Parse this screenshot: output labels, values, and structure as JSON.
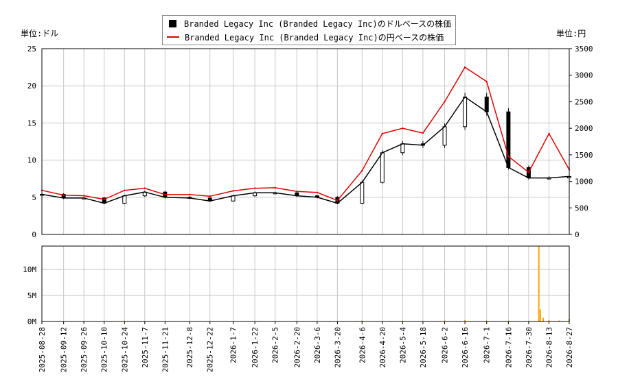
{
  "legend": {
    "usd": "Branded Legacy Inc (Branded Legacy Inc)のドルベースの株価",
    "jpy": "Branded Legacy Inc (Branded Legacy Inc)の円ベースの株価"
  },
  "units": {
    "left": "単位:ドル",
    "right": "単位:円"
  },
  "colors": {
    "usd_candle": "#000000",
    "jpy_line": "#e00000",
    "volume": "#ffa500",
    "grid": "#c8c8c8"
  },
  "chart_data": [
    {
      "type": "line",
      "title": "",
      "x_dates": [
        "2025-08-28",
        "2025-09-12",
        "2025-09-26",
        "2025-10-10",
        "2025-10-24",
        "2025-11-7",
        "2025-11-21",
        "2025-12-8",
        "2025-12-22",
        "2026-1-7",
        "2026-1-22",
        "2026-2-5",
        "2026-2-20",
        "2026-3-6",
        "2026-3-20",
        "2026-4-6",
        "2026-4-20",
        "2026-5-4",
        "2026-5-18",
        "2026-6-2",
        "2026-6-16",
        "2026-7-1",
        "2026-7-16",
        "2026-7-30",
        "2026-8-13",
        "2026-8-27"
      ],
      "y_left": {
        "label": "単位:ドル",
        "ylim": [
          0,
          25
        ],
        "ticks": [
          0,
          5,
          10,
          15,
          20,
          25
        ]
      },
      "y_right": {
        "label": "単位:円",
        "ylim": [
          0,
          3500
        ],
        "ticks": [
          0,
          500,
          1000,
          1500,
          2000,
          2500,
          3000,
          3500
        ]
      },
      "series": [
        {
          "name": "Branded Legacy Inc (Branded Legacy Inc)のドルベースの株価",
          "axis": "left",
          "style": "candlestick",
          "values": [
            5.4,
            4.9,
            4.9,
            4.2,
            5.2,
            5.7,
            5.0,
            4.9,
            4.5,
            5.2,
            5.6,
            5.6,
            5.2,
            5.0,
            4.2,
            7.0,
            11.0,
            12.2,
            12.0,
            14.5,
            18.5,
            16.5,
            9.0,
            7.6,
            7.6,
            7.8
          ]
        },
        {
          "name": "Branded Legacy Inc (Branded Legacy Inc)の円ベースの株価",
          "axis": "right",
          "style": "line",
          "values": [
            830,
            740,
            730,
            660,
            830,
            870,
            750,
            750,
            720,
            820,
            870,
            880,
            810,
            790,
            640,
            1200,
            1900,
            2000,
            1910,
            2500,
            3150,
            2880,
            1470,
            1170,
            1900,
            1220
          ]
        }
      ],
      "grid": true
    },
    {
      "type": "bar",
      "title": "",
      "x_dates": [
        "2025-08-28",
        "2025-09-12",
        "2025-09-26",
        "2025-10-10",
        "2025-10-24",
        "2025-11-7",
        "2025-11-21",
        "2025-12-8",
        "2025-12-22",
        "2026-1-7",
        "2026-1-22",
        "2026-2-5",
        "2026-2-20",
        "2026-3-6",
        "2026-3-20",
        "2026-4-6",
        "2026-4-20",
        "2026-5-4",
        "2026-5-18",
        "2026-6-2",
        "2026-6-16",
        "2026-7-1",
        "2026-7-16",
        "2026-7-30",
        "2026-8-13",
        "2026-8-27"
      ],
      "ylim": [
        0,
        14500000
      ],
      "y_ticks": [
        0,
        5000000,
        10000000
      ],
      "y_tick_labels": [
        "0M",
        "5M",
        "10M"
      ],
      "series": [
        {
          "name": "",
          "values": [
            {
              "x": "2025-08-28",
              "v": 120000
            },
            {
              "x": "2025-09-26",
              "v": 100000
            },
            {
              "x": "2025-10-24",
              "v": 150000
            },
            {
              "x": "2025-12-22",
              "v": 80000
            },
            {
              "x": "2026-2-20",
              "v": 70000
            },
            {
              "x": "2026-4-6",
              "v": 180000
            },
            {
              "x": "2026-5-4",
              "v": 150000
            },
            {
              "x": "2026-6-2",
              "v": 200000
            },
            {
              "x": "2026-6-16",
              "v": 250000
            },
            {
              "x": "2026-7-1",
              "v": 200000
            },
            {
              "x": "2026-7-16",
              "v": 150000
            },
            {
              "x": "2026-7-30",
              "v": 120000
            },
            {
              "x": "2026-8-6",
              "v": 14500000
            },
            {
              "x": "2026-8-7",
              "v": 2300000
            },
            {
              "x": "2026-8-9",
              "v": 700000
            },
            {
              "x": "2026-8-13",
              "v": 300000
            },
            {
              "x": "2026-8-20",
              "v": 200000
            },
            {
              "x": "2026-8-27",
              "v": 500000
            }
          ]
        }
      ],
      "grid": true
    }
  ]
}
